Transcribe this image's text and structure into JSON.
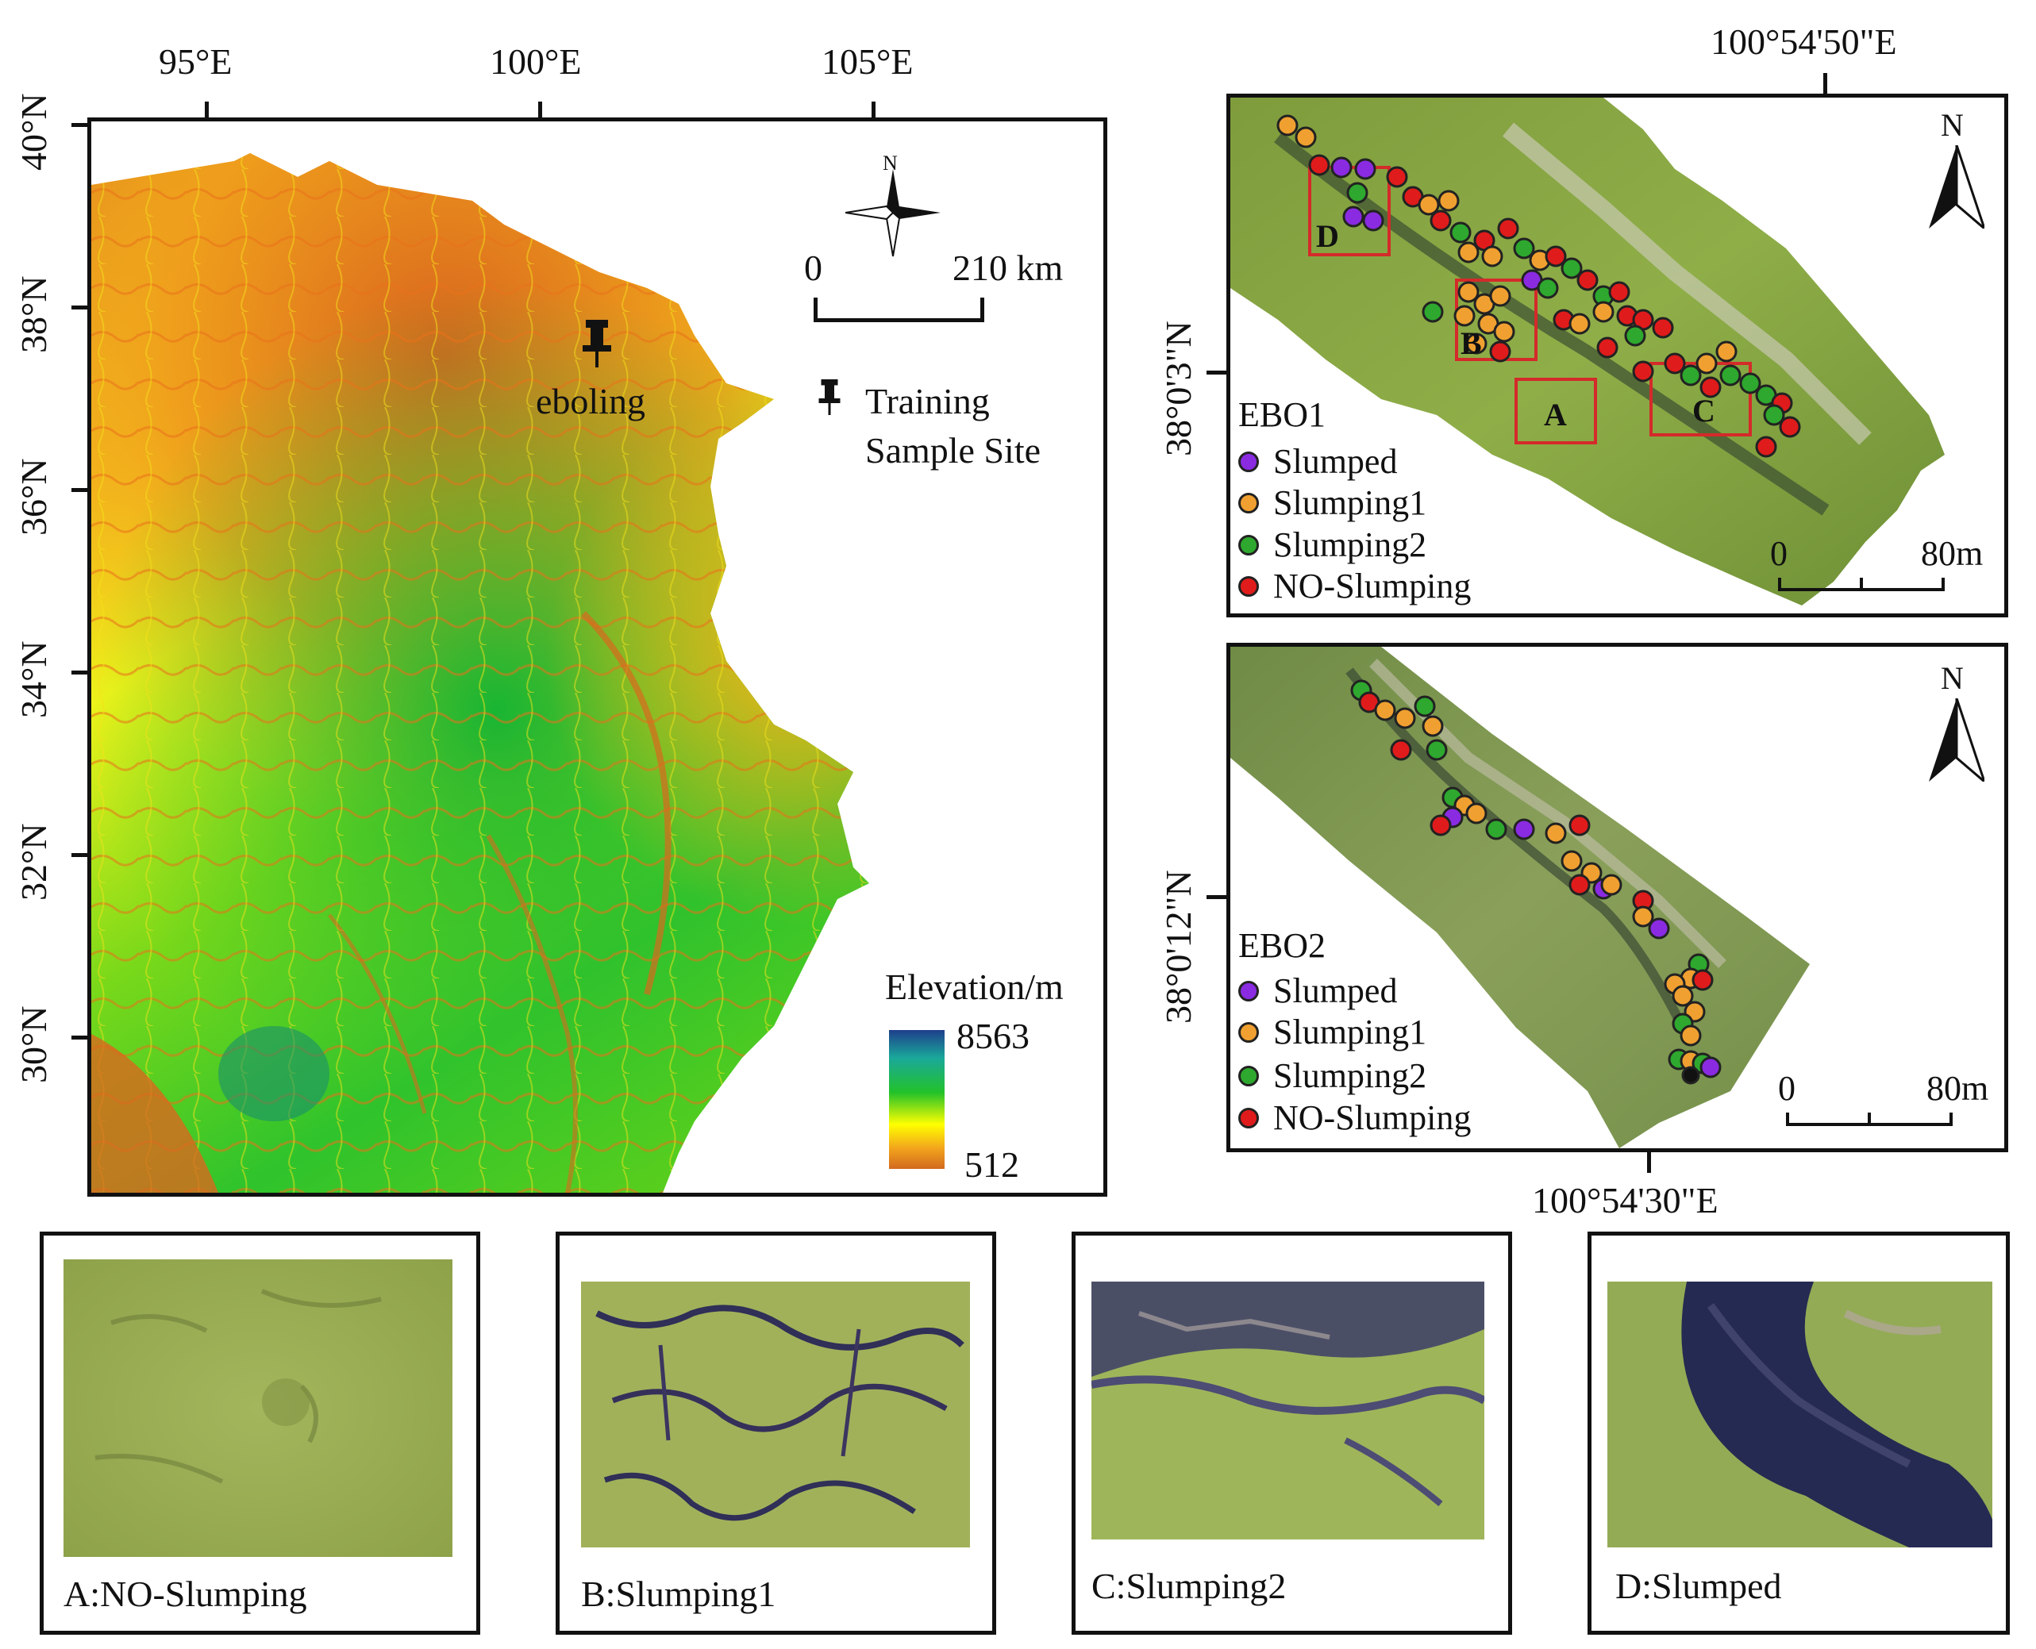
{
  "main_map": {
    "lon_labels": [
      "95°E",
      "100°E",
      "105°E"
    ],
    "lat_labels": [
      "40°N",
      "38°N",
      "36°N",
      "34°N",
      "32°N",
      "30°N"
    ],
    "site_label": "eboling",
    "scale_zero": "0",
    "scale_value": "210 km",
    "north_letter": "N",
    "legend_training_line1": "Training",
    "legend_training_line2": "Sample Site",
    "elevation_title": "Elevation/m",
    "elevation_max": "8563",
    "elevation_min": "512",
    "colors": {
      "low": "#d2691e",
      "mid": "#ffff00",
      "high_green": "#1fc41f",
      "top": "#1e3f8c"
    }
  },
  "ebo1": {
    "top_lon_label": "100°54'50\"E",
    "lat_label": "38°0'3\"N",
    "north_letter": "N",
    "title": "EBO1",
    "legend": [
      "Slumped",
      "Slumping1",
      "Slumping2",
      "NO-Slumping"
    ],
    "scale_zero": "0",
    "scale_value": "80m",
    "box_labels": [
      "D",
      "B",
      "A",
      "C"
    ]
  },
  "ebo2": {
    "bottom_lon_label": "100°54'30\"E",
    "lat_label": "38°0'12\"N",
    "north_letter": "N",
    "title": "EBO2",
    "legend": [
      "Slumped",
      "Slumping1",
      "Slumping2",
      "NO-Slumping"
    ],
    "scale_zero": "0",
    "scale_value": "80m"
  },
  "class_colors": {
    "Slumped": "#8a2be2",
    "Slumping1": "#f0a030",
    "Slumping2": "#2ea82e",
    "NO-Slumping": "#e01b1b"
  },
  "samples": [
    {
      "caption": "A:NO-Slumping"
    },
    {
      "caption": "B:Slumping1"
    },
    {
      "caption": "C:Slumping2"
    },
    {
      "caption": "D:Slumped"
    }
  ]
}
